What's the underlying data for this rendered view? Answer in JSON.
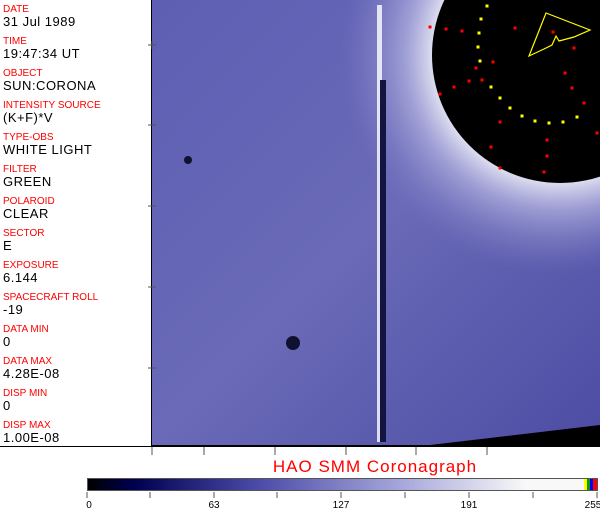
{
  "header_fields": [
    {
      "label": "DATE",
      "value": "31 Jul 1989"
    },
    {
      "label": "TIME",
      "value": "19:47:34 UT"
    },
    {
      "label": "OBJECT",
      "value": "SUN:CORONA"
    },
    {
      "label": "INTENSITY SOURCE",
      "value": "(K+F)*V"
    },
    {
      "label": "TYPE-OBS",
      "value": "WHITE LIGHT"
    },
    {
      "label": "FILTER",
      "value": "GREEN"
    },
    {
      "label": "POLAROID",
      "value": "CLEAR"
    },
    {
      "label": "SECTOR",
      "value": "E"
    },
    {
      "label": "EXPOSURE",
      "value": "6.144"
    },
    {
      "label": "SPACECRAFT ROLL",
      "value": "-19"
    },
    {
      "label": "DATA MIN",
      "value": "0"
    },
    {
      "label": "DATA MAX",
      "value": "4.28E-08"
    },
    {
      "label": "DISP MIN",
      "value": "0"
    },
    {
      "label": "DISP MAX",
      "value": "1.00E-08"
    }
  ],
  "title": "HAO  SMM Coronagraph",
  "colorbar": {
    "ticks": [
      "0",
      "63",
      "127",
      "191",
      "255"
    ],
    "colors": [
      "#000000",
      "#000050",
      "#4a4aa8",
      "#a8a8dc",
      "#f8f8f8"
    ],
    "overlay_colors": [
      "#ffff00",
      "#00a000",
      "#0000ff",
      "#ff0000"
    ]
  },
  "overlay": {
    "marker_colors": {
      "yellow": "#ffff00",
      "red": "#ff0000"
    }
  }
}
